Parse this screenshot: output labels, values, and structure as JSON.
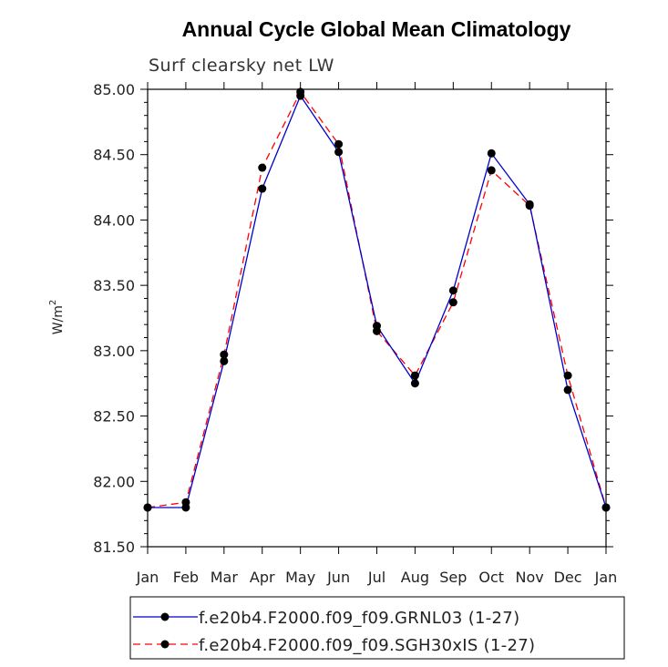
{
  "chart_data": {
    "type": "line",
    "title": "Annual Cycle Global Mean Climatology",
    "subtitle": "Surf clearsky net LW",
    "ylabel": "W/m",
    "ylabel_superscript": "2",
    "ylim": [
      81.5,
      85.0
    ],
    "yticks": [
      "81.50",
      "82.00",
      "82.50",
      "83.00",
      "83.50",
      "84.00",
      "84.50",
      "85.00"
    ],
    "ytick_values": [
      81.5,
      82.0,
      82.5,
      83.0,
      83.5,
      84.0,
      84.5,
      85.0
    ],
    "categories": [
      "Jan",
      "Feb",
      "Mar",
      "Apr",
      "May",
      "Jun",
      "Jul",
      "Aug",
      "Sep",
      "Oct",
      "Nov",
      "Dec",
      "Jan"
    ],
    "series": [
      {
        "name": "f.e20b4.F2000.f09_f09.GRNL03 (1-27)",
        "color": "#0000cc",
        "dash": "solid",
        "values": [
          81.8,
          81.8,
          82.92,
          84.24,
          84.95,
          84.52,
          83.19,
          82.75,
          83.46,
          84.51,
          84.12,
          82.7,
          81.8
        ]
      },
      {
        "name": "f.e20b4.F2000.f09_f09.SGH30xIS (1-27)",
        "color": "#ff0000",
        "dash": "dashed",
        "values": [
          81.8,
          81.84,
          82.97,
          84.4,
          84.98,
          84.58,
          83.15,
          82.81,
          83.37,
          84.38,
          84.11,
          82.81,
          81.8
        ]
      }
    ],
    "marker_color": "#000000"
  }
}
